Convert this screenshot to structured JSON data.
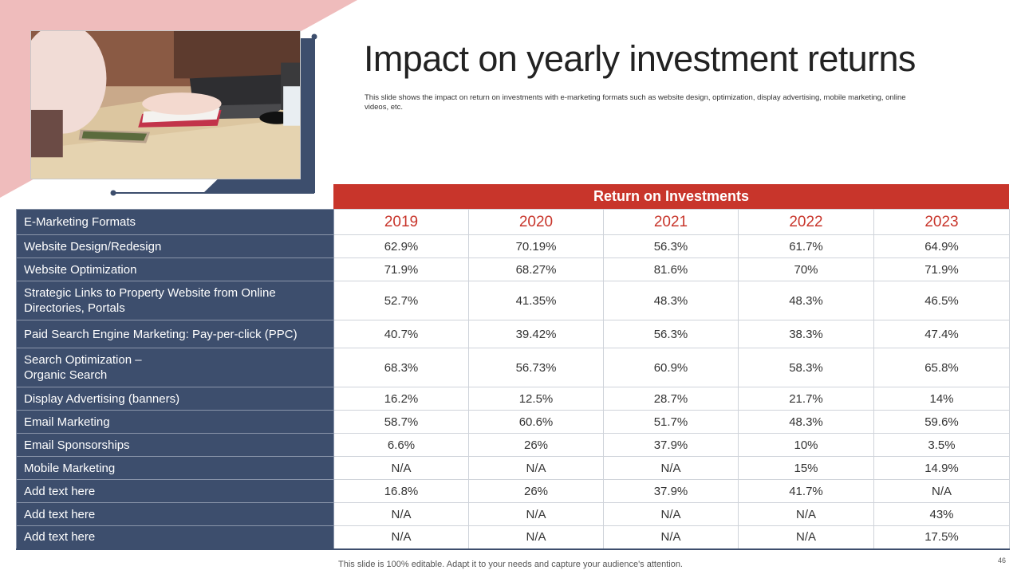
{
  "header": {
    "title": "Impact on yearly investment returns",
    "subtitle": "This slide shows the impact on return on investments with e-marketing formats such as website design, optimization, display advertising, mobile marketing, online videos, etc."
  },
  "colors": {
    "accent_red": "#c8352b",
    "navy": "#3d4e6d",
    "pink": "#efbcbc"
  },
  "table": {
    "group_header": "Return on Investments",
    "first_header": "E-Marketing Formats",
    "years": [
      "2019",
      "2020",
      "2021",
      "2022",
      "2023"
    ],
    "rows": [
      {
        "label": "Website Design/Redesign",
        "values": [
          "62.9%",
          "70.19%",
          "56.3%",
          "61.7%",
          "64.9%"
        ]
      },
      {
        "label": "Website Optimization",
        "values": [
          "71.9%",
          "68.27%",
          "81.6%",
          "70%",
          "71.9%"
        ]
      },
      {
        "label": "Strategic Links to Property Website from Online Directories, Portals",
        "values": [
          "52.7%",
          "41.35%",
          "48.3%",
          "48.3%",
          "46.5%"
        ]
      },
      {
        "label": "Paid Search Engine Marketing: Pay-per-click (PPC)",
        "values": [
          "40.7%",
          "39.42%",
          "56.3%",
          "38.3%",
          "47.4%"
        ]
      },
      {
        "label": "Search Optimization – Organic Search",
        "values": [
          "68.3%",
          "56.73%",
          "60.9%",
          "58.3%",
          "65.8%"
        ]
      },
      {
        "label": "Display Advertising (banners)",
        "values": [
          "16.2%",
          "12.5%",
          "28.7%",
          "21.7%",
          "14%"
        ]
      },
      {
        "label": "Email Marketing",
        "values": [
          "58.7%",
          "60.6%",
          "51.7%",
          "48.3%",
          "59.6%"
        ]
      },
      {
        "label": "Email Sponsorships",
        "values": [
          "6.6%",
          "26%",
          "37.9%",
          "10%",
          "3.5%"
        ]
      },
      {
        "label": "Mobile Marketing",
        "values": [
          "N/A",
          "N/A",
          "N/A",
          "15%",
          "14.9%"
        ]
      },
      {
        "label": "Add text here",
        "values": [
          "16.8%",
          "26%",
          "37.9%",
          "41.7%",
          "N/A"
        ]
      },
      {
        "label": "Add text here",
        "values": [
          "N/A",
          "N/A",
          "N/A",
          "N/A",
          "43%"
        ]
      },
      {
        "label": "Add text here",
        "values": [
          "N/A",
          "N/A",
          "N/A",
          "N/A",
          "17.5%"
        ]
      }
    ]
  },
  "footer": {
    "note": "This slide is 100% editable. Adapt it to your needs and capture your audience's attention.",
    "page_number": "46"
  }
}
